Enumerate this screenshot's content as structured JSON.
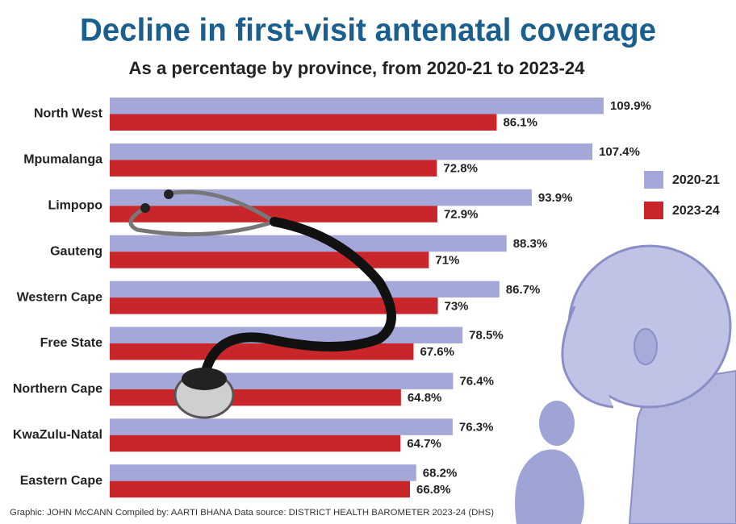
{
  "chart_data": {
    "type": "bar",
    "orientation": "horizontal",
    "title": "Decline in first-visit antenatal coverage",
    "subtitle": "As a percentage by province, from 2020-21 to 2023-24",
    "categories": [
      "North West",
      "Mpumalanga",
      "Limpopo",
      "Gauteng",
      "Western Cape",
      "Free State",
      "Northern Cape",
      "KwaZulu-Natal",
      "Eastern Cape"
    ],
    "series": [
      {
        "name": "2020-21",
        "color": "#a3a8d8",
        "values": [
          109.9,
          107.4,
          93.9,
          88.3,
          86.7,
          78.5,
          76.4,
          76.3,
          68.2
        ],
        "value_labels": [
          "109.9%",
          "107.4%",
          "93.9%",
          "88.3%",
          "86.7%",
          "78.5%",
          "76.4%",
          "76.3%",
          "68.2%"
        ]
      },
      {
        "name": "2023-24",
        "color": "#c8262b",
        "values": [
          86.1,
          72.8,
          72.9,
          71,
          73,
          67.6,
          64.8,
          64.7,
          66.8
        ],
        "value_labels": [
          "86.1%",
          "72.8%",
          "72.9%",
          "71%",
          "73%",
          "67.6%",
          "64.8%",
          "64.7%",
          "66.8%"
        ]
      }
    ],
    "legend": "right",
    "source": "Graphic: JOHN McCANN  Compiled by: AARTI BHANA  Data source: DISTRICT HEALTH BAROMETER 2023-24 (DHS)"
  }
}
